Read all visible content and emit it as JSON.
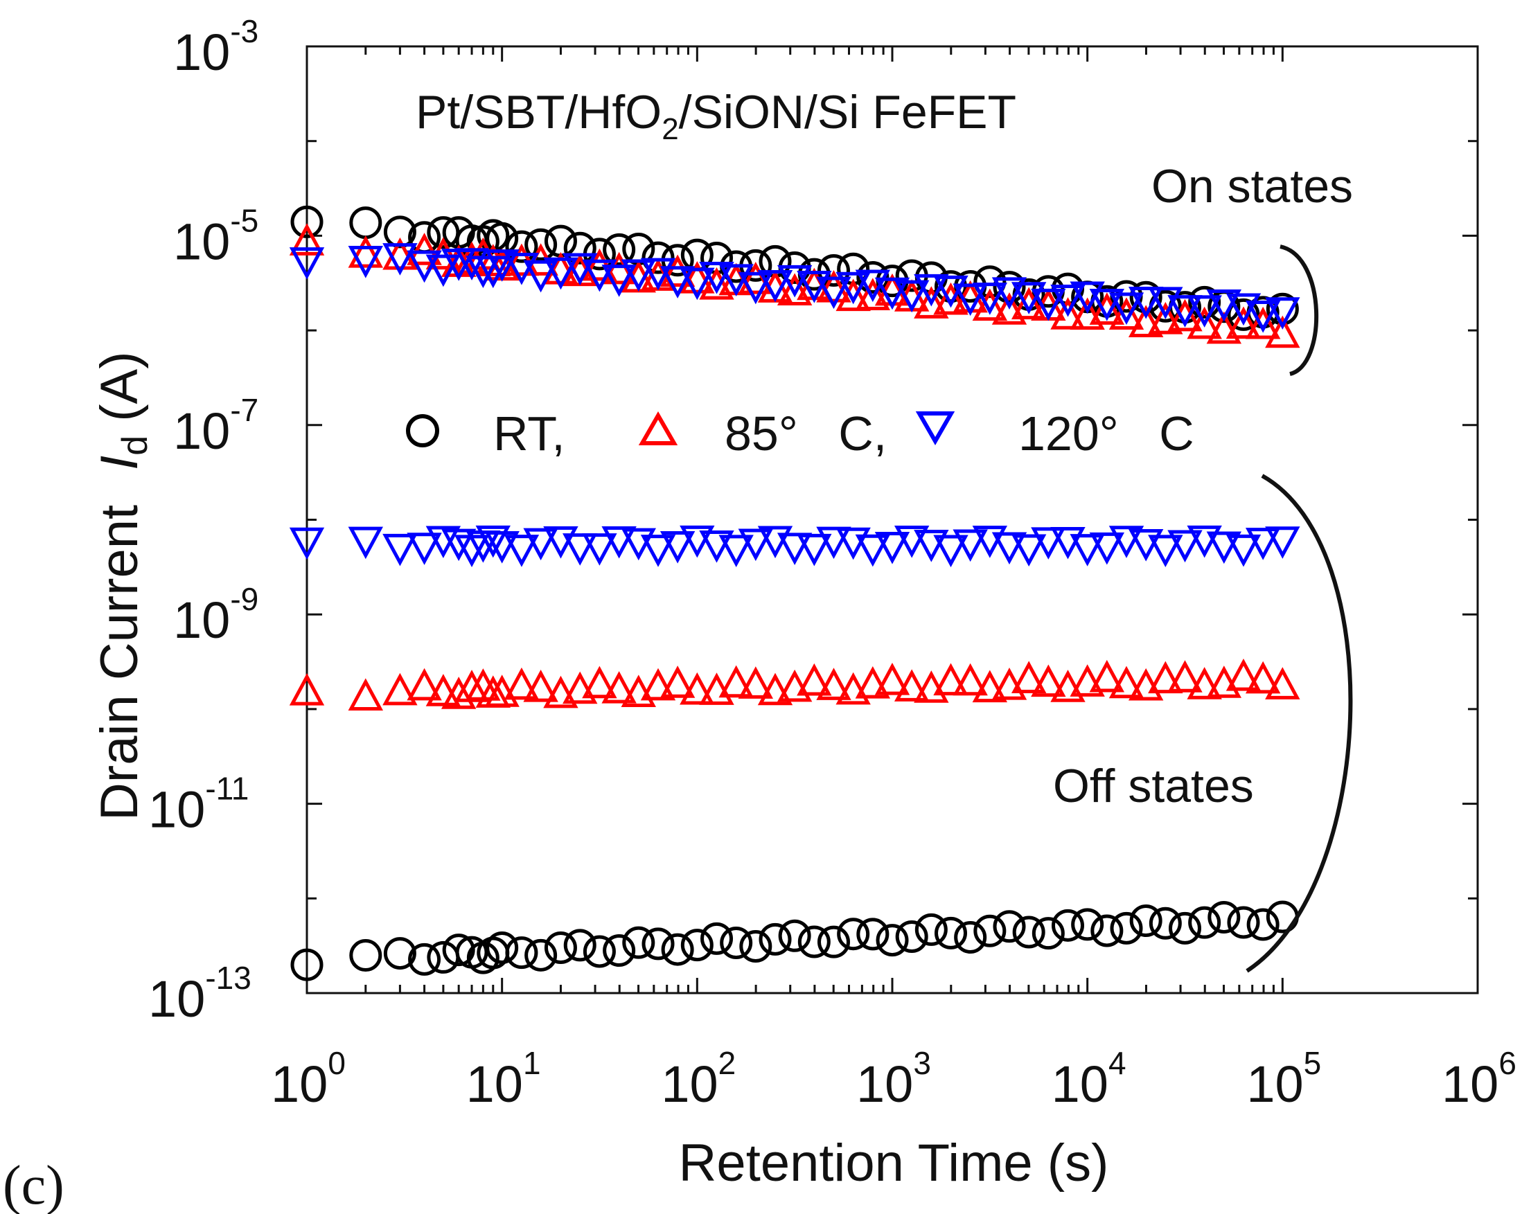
{
  "chart_data": {
    "type": "scatter",
    "panel_label": "(c)",
    "title": "Pt/SBT/HfO2/SiON/Si FeFET",
    "title_parts": {
      "a": "Pt/SBT/HfO",
      "sub": "2",
      "b": "/SiON/Si FeFET"
    },
    "xlabel": "Retention Time (s)",
    "ylabel": {
      "prefix": "Drain Current",
      "italic": "I",
      "sub": "d",
      "unit": "(A)"
    },
    "xscale": "log",
    "yscale": "log",
    "xlim": [
      1,
      1000000
    ],
    "ylim": [
      1e-13,
      0.001
    ],
    "x_ticks": [
      {
        "value": 1,
        "base": "10",
        "exp": "0"
      },
      {
        "value": 10,
        "base": "10",
        "exp": "1"
      },
      {
        "value": 100,
        "base": "10",
        "exp": "2"
      },
      {
        "value": 1000,
        "base": "10",
        "exp": "3"
      },
      {
        "value": 10000,
        "base": "10",
        "exp": "4"
      },
      {
        "value": 100000,
        "base": "10",
        "exp": "5"
      },
      {
        "value": 1000000,
        "base": "10",
        "exp": "6"
      }
    ],
    "y_ticks": [
      {
        "value": 0.001,
        "base": "10",
        "exp": "-3"
      },
      {
        "value": 1e-05,
        "base": "10",
        "exp": "-5"
      },
      {
        "value": 1e-07,
        "base": "10",
        "exp": "-7"
      },
      {
        "value": 1e-09,
        "base": "10",
        "exp": "-9"
      },
      {
        "value": 1e-11,
        "base": "10",
        "exp": "-11"
      },
      {
        "value": 1e-13,
        "base": "10",
        "exp": "-13"
      }
    ],
    "legend": [
      {
        "label": "RT,",
        "marker": "circle",
        "color": "#000000"
      },
      {
        "label": "85°   C,",
        "marker": "triangle-up",
        "color": "#ff0000"
      },
      {
        "label": "120°   C",
        "marker": "triangle-down",
        "color": "#0000ff"
      }
    ],
    "annotations": [
      "On states",
      "Off states"
    ],
    "series": [
      {
        "name": "RT on",
        "marker": "circle",
        "color": "#000000",
        "y_start": 1.4e-05,
        "y_end": 1.5e-06
      },
      {
        "name": "85 C on",
        "marker": "triangle-up",
        "color": "#ff0000",
        "y_start": 8e-06,
        "y_end": 1e-06
      },
      {
        "name": "120 C on",
        "marker": "triangle-down",
        "color": "#0000ff",
        "y_start": 6e-06,
        "y_end": 1.6e-06
      },
      {
        "name": "120 C off",
        "marker": "triangle-down",
        "color": "#0000ff",
        "y_start": 5.5e-09,
        "y_end": 5.5e-09
      },
      {
        "name": "85 C off",
        "marker": "triangle-up",
        "color": "#ff0000",
        "y_start": 1.5e-10,
        "y_end": 2e-10
      },
      {
        "name": "RT off",
        "marker": "circle",
        "color": "#000000",
        "y_start": 2.2e-13,
        "y_end": 6e-13
      }
    ],
    "x_points": [
      1,
      2,
      3,
      4,
      5,
      6,
      7,
      8,
      9,
      10,
      12.6,
      15.8,
      20,
      25.1,
      31.6,
      39.8,
      50.1,
      63.1,
      79.4,
      100,
      125.9,
      158.5,
      199.5,
      251.2,
      316.2,
      398.1,
      501.2,
      631,
      794.3,
      1000,
      1258.9,
      1584.9,
      1995.3,
      2511.9,
      3162.3,
      3981.1,
      5011.9,
      6309.6,
      7943.3,
      10000,
      12589,
      15849,
      19953,
      25119,
      31623,
      39811,
      50119,
      63096,
      79433,
      100000
    ]
  }
}
